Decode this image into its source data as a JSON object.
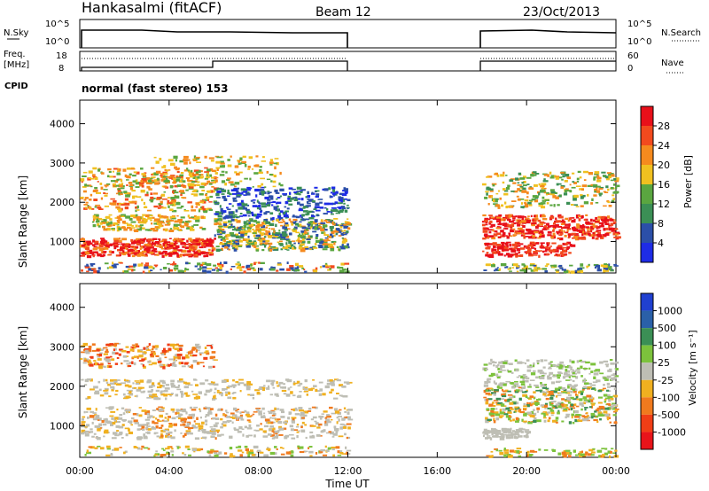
{
  "header": {
    "station": "Hankasalmi (fitACF)",
    "beam": "Beam 12",
    "date": "23/Oct/2013"
  },
  "labels": {
    "nsky": "N.Sky",
    "nsearch": "N.Search",
    "freq_line1": "Freq.",
    "freq_line2": "[MHz]",
    "nave": "Nave",
    "cpid": "CPID",
    "cpid_value": "normal (fast stereo) 153",
    "time_axis": "Time UT",
    "slant_range": "Slant Range [km]",
    "power_label": "Power [dB]",
    "velocity_label": "Velocity [m s⁻¹]"
  },
  "colors": {
    "power": [
      "#1e2ce6",
      "#2b4fa8",
      "#3b8f55",
      "#5aa640",
      "#f0c020",
      "#f58a1e",
      "#f24a1e",
      "#e8101a"
    ],
    "velocity": [
      "#2040d0",
      "#2a60a8",
      "#3b8f55",
      "#7cc23c",
      "#bebeb4",
      "#f0b020",
      "#f07a1e",
      "#f03e16",
      "#e8141a"
    ]
  },
  "chart_data": [
    {
      "type": "line",
      "name": "noise-panel",
      "x_ticks": [
        "00:00",
        "04:00",
        "08:00",
        "12:00",
        "16:00",
        "20:00",
        "00:00"
      ],
      "left_ticks": [
        "10^5",
        "10^0"
      ],
      "right_ticks": [
        "10^5",
        "10^0"
      ],
      "segments_hours": [
        [
          0,
          12
        ],
        [
          18,
          24
        ]
      ]
    },
    {
      "type": "line",
      "name": "freq-nave-panel",
      "left_ticks": [
        "18",
        "8"
      ],
      "right_ticks": [
        "60",
        "0"
      ],
      "freq_steps": [
        {
          "from": 0,
          "to": 6,
          "level": "low"
        },
        {
          "from": 6,
          "to": 12,
          "level": "high"
        },
        {
          "from": 18,
          "to": 24,
          "level": "high"
        }
      ]
    },
    {
      "type": "heatmap",
      "name": "power-panel",
      "xlim": [
        0,
        24
      ],
      "ylim": [
        200,
        4600
      ],
      "y_ticks": [
        "1000",
        "2000",
        "3000",
        "4000"
      ],
      "x_ticks": [
        "00:00",
        "04:00",
        "08:00",
        "12:00",
        "16:00",
        "20:00",
        "00:00"
      ],
      "colorbar_ticks": [
        "4",
        "8",
        "12",
        "16",
        "20",
        "24",
        "28"
      ]
    },
    {
      "type": "heatmap",
      "name": "velocity-panel",
      "xlim": [
        0,
        24
      ],
      "ylim": [
        200,
        4600
      ],
      "y_ticks": [
        "1000",
        "2000",
        "3000",
        "4000"
      ],
      "x_ticks": [
        "00:00",
        "04:00",
        "08:00",
        "12:00",
        "16:00",
        "20:00",
        "00:00"
      ],
      "colorbar_ticks": [
        "1000",
        "500",
        "100",
        "25",
        "-25",
        "-100",
        "-500",
        "-1000"
      ]
    }
  ]
}
